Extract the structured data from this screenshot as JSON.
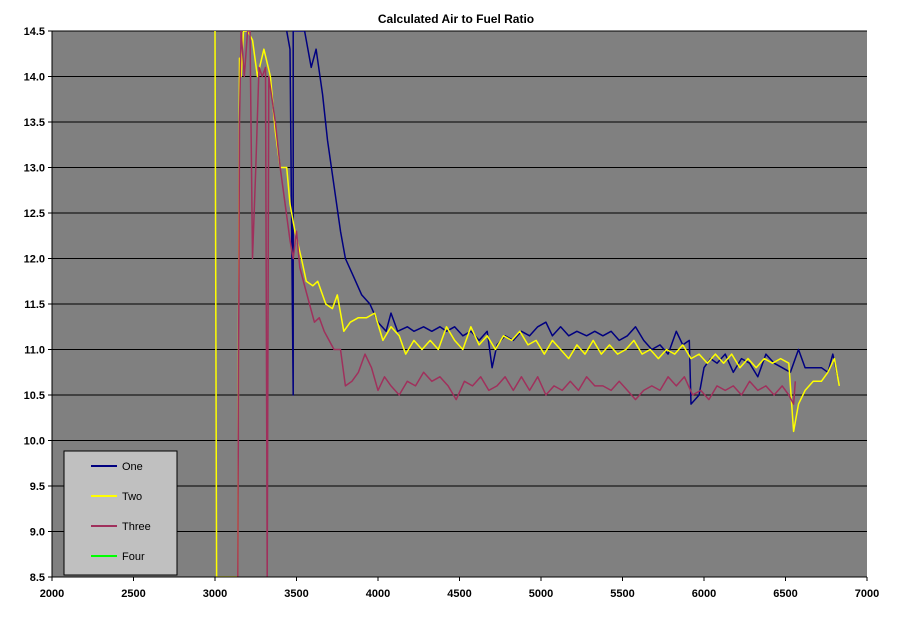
{
  "chart_data": {
    "type": "line",
    "title": "Calculated Air to Fuel Ratio",
    "xlabel": "",
    "ylabel": "",
    "xlim": [
      2000,
      7000
    ],
    "ylim": [
      8.5,
      14.5
    ],
    "x_ticks": [
      2000,
      2500,
      3000,
      3500,
      4000,
      4500,
      5000,
      5500,
      6000,
      6500,
      7000
    ],
    "y_ticks": [
      8.5,
      9.0,
      9.5,
      10.0,
      10.5,
      11.0,
      11.5,
      12.0,
      12.5,
      13.0,
      13.5,
      14.0,
      14.5
    ],
    "y_tick_labels": [
      "8.5",
      "9.0",
      "9.5",
      "10.0",
      "10.5",
      "11.0",
      "11.5",
      "12.0",
      "12.5",
      "13.0",
      "13.5",
      "14.0",
      "14.5"
    ],
    "grid": "horizontal",
    "plot_background": "#808080",
    "legend_position": "bottom-left",
    "series": [
      {
        "name": "One",
        "color": "#000080",
        "points": [
          [
            3440,
            14.5
          ],
          [
            3460,
            14.3
          ],
          [
            3480,
            10.5
          ],
          [
            3480,
            14.5
          ],
          [
            3550,
            14.5
          ],
          [
            3590,
            14.1
          ],
          [
            3620,
            14.3
          ],
          [
            3660,
            13.8
          ],
          [
            3690,
            13.3
          ],
          [
            3730,
            12.8
          ],
          [
            3770,
            12.3
          ],
          [
            3800,
            12.0
          ],
          [
            3850,
            11.8
          ],
          [
            3900,
            11.6
          ],
          [
            3950,
            11.5
          ],
          [
            4000,
            11.3
          ],
          [
            4050,
            11.2
          ],
          [
            4080,
            11.4
          ],
          [
            4120,
            11.2
          ],
          [
            4180,
            11.25
          ],
          [
            4220,
            11.2
          ],
          [
            4280,
            11.25
          ],
          [
            4330,
            11.2
          ],
          [
            4380,
            11.25
          ],
          [
            4420,
            11.2
          ],
          [
            4470,
            11.25
          ],
          [
            4520,
            11.15
          ],
          [
            4570,
            11.2
          ],
          [
            4620,
            11.1
          ],
          [
            4670,
            11.2
          ],
          [
            4700,
            10.8
          ],
          [
            4730,
            11.05
          ],
          [
            4780,
            11.15
          ],
          [
            4830,
            11.1
          ],
          [
            4880,
            11.2
          ],
          [
            4930,
            11.15
          ],
          [
            4980,
            11.25
          ],
          [
            5030,
            11.3
          ],
          [
            5070,
            11.15
          ],
          [
            5120,
            11.25
          ],
          [
            5170,
            11.15
          ],
          [
            5220,
            11.2
          ],
          [
            5280,
            11.15
          ],
          [
            5330,
            11.2
          ],
          [
            5380,
            11.15
          ],
          [
            5430,
            11.2
          ],
          [
            5480,
            11.1
          ],
          [
            5530,
            11.15
          ],
          [
            5580,
            11.25
          ],
          [
            5630,
            11.1
          ],
          [
            5680,
            11.0
          ],
          [
            5730,
            11.05
          ],
          [
            5780,
            10.95
          ],
          [
            5830,
            11.2
          ],
          [
            5870,
            11.05
          ],
          [
            5910,
            11.1
          ],
          [
            5920,
            10.4
          ],
          [
            5970,
            10.5
          ],
          [
            6000,
            10.8
          ],
          [
            6040,
            10.9
          ],
          [
            6080,
            10.85
          ],
          [
            6130,
            10.95
          ],
          [
            6180,
            10.75
          ],
          [
            6230,
            10.9
          ],
          [
            6280,
            10.85
          ],
          [
            6330,
            10.7
          ],
          [
            6380,
            10.95
          ],
          [
            6430,
            10.85
          ],
          [
            6480,
            10.8
          ],
          [
            6530,
            10.75
          ],
          [
            6580,
            11.0
          ],
          [
            6620,
            10.8
          ],
          [
            6670,
            10.8
          ],
          [
            6720,
            10.8
          ],
          [
            6760,
            10.75
          ],
          [
            6790,
            10.95
          ],
          [
            6820,
            10.7
          ]
        ]
      },
      {
        "name": "Two",
        "color": "#ffff00",
        "points": [
          [
            3000,
            14.5
          ],
          [
            3010,
            8.5
          ],
          [
            3140,
            8.5
          ],
          [
            3150,
            14.2
          ],
          [
            3160,
            14.0
          ],
          [
            3175,
            14.5
          ],
          [
            3200,
            14.5
          ],
          [
            3230,
            14.4
          ],
          [
            3260,
            14.0
          ],
          [
            3300,
            14.3
          ],
          [
            3340,
            14.0
          ],
          [
            3370,
            13.4
          ],
          [
            3400,
            13.0
          ],
          [
            3440,
            13.0
          ],
          [
            3460,
            12.6
          ],
          [
            3490,
            12.3
          ],
          [
            3530,
            12.0
          ],
          [
            3560,
            11.75
          ],
          [
            3600,
            11.7
          ],
          [
            3630,
            11.75
          ],
          [
            3680,
            11.5
          ],
          [
            3720,
            11.45
          ],
          [
            3750,
            11.6
          ],
          [
            3790,
            11.2
          ],
          [
            3830,
            11.3
          ],
          [
            3880,
            11.35
          ],
          [
            3930,
            11.35
          ],
          [
            3980,
            11.4
          ],
          [
            4030,
            11.1
          ],
          [
            4080,
            11.25
          ],
          [
            4130,
            11.15
          ],
          [
            4170,
            10.95
          ],
          [
            4220,
            11.1
          ],
          [
            4270,
            11.0
          ],
          [
            4320,
            11.1
          ],
          [
            4370,
            11.0
          ],
          [
            4420,
            11.25
          ],
          [
            4470,
            11.1
          ],
          [
            4520,
            11.0
          ],
          [
            4570,
            11.25
          ],
          [
            4620,
            11.05
          ],
          [
            4670,
            11.15
          ],
          [
            4720,
            11.0
          ],
          [
            4770,
            11.15
          ],
          [
            4820,
            11.1
          ],
          [
            4870,
            11.2
          ],
          [
            4920,
            11.05
          ],
          [
            4970,
            11.1
          ],
          [
            5020,
            10.95
          ],
          [
            5070,
            11.1
          ],
          [
            5120,
            11.0
          ],
          [
            5170,
            10.9
          ],
          [
            5220,
            11.05
          ],
          [
            5270,
            10.95
          ],
          [
            5320,
            11.1
          ],
          [
            5370,
            10.95
          ],
          [
            5420,
            11.05
          ],
          [
            5470,
            10.95
          ],
          [
            5520,
            11.0
          ],
          [
            5570,
            11.1
          ],
          [
            5620,
            10.95
          ],
          [
            5670,
            11.0
          ],
          [
            5720,
            10.9
          ],
          [
            5770,
            11.0
          ],
          [
            5820,
            10.95
          ],
          [
            5870,
            11.05
          ],
          [
            5920,
            10.9
          ],
          [
            5970,
            10.95
          ],
          [
            6020,
            10.85
          ],
          [
            6070,
            10.95
          ],
          [
            6120,
            10.85
          ],
          [
            6170,
            10.95
          ],
          [
            6220,
            10.8
          ],
          [
            6270,
            10.9
          ],
          [
            6320,
            10.8
          ],
          [
            6370,
            10.9
          ],
          [
            6420,
            10.85
          ],
          [
            6470,
            10.9
          ],
          [
            6520,
            10.85
          ],
          [
            6550,
            10.1
          ],
          [
            6580,
            10.4
          ],
          [
            6620,
            10.55
          ],
          [
            6670,
            10.65
          ],
          [
            6720,
            10.65
          ],
          [
            6760,
            10.75
          ],
          [
            6800,
            10.9
          ],
          [
            6830,
            10.6
          ]
        ]
      },
      {
        "name": "Three",
        "color": "#a0305c",
        "points": [
          [
            3140,
            8.5
          ],
          [
            3150,
            13.5
          ],
          [
            3160,
            14.5
          ],
          [
            3180,
            14.0
          ],
          [
            3200,
            14.5
          ],
          [
            3215,
            14.5
          ],
          [
            3230,
            12.0
          ],
          [
            3250,
            13.0
          ],
          [
            3270,
            14.1
          ],
          [
            3290,
            14.0
          ],
          [
            3310,
            14.1
          ],
          [
            3320,
            8.5
          ],
          [
            3330,
            14.0
          ],
          [
            3370,
            13.5
          ],
          [
            3400,
            13.0
          ],
          [
            3430,
            12.6
          ],
          [
            3460,
            12.2
          ],
          [
            3480,
            12.0
          ],
          [
            3500,
            12.3
          ],
          [
            3520,
            11.9
          ],
          [
            3550,
            11.7
          ],
          [
            3580,
            11.5
          ],
          [
            3610,
            11.3
          ],
          [
            3640,
            11.35
          ],
          [
            3670,
            11.2
          ],
          [
            3700,
            11.1
          ],
          [
            3730,
            11.0
          ],
          [
            3770,
            11.0
          ],
          [
            3800,
            10.6
          ],
          [
            3840,
            10.65
          ],
          [
            3880,
            10.75
          ],
          [
            3920,
            10.95
          ],
          [
            3960,
            10.8
          ],
          [
            4000,
            10.55
          ],
          [
            4040,
            10.7
          ],
          [
            4080,
            10.6
          ],
          [
            4130,
            10.5
          ],
          [
            4180,
            10.65
          ],
          [
            4230,
            10.6
          ],
          [
            4280,
            10.75
          ],
          [
            4330,
            10.65
          ],
          [
            4380,
            10.7
          ],
          [
            4430,
            10.6
          ],
          [
            4480,
            10.45
          ],
          [
            4530,
            10.65
          ],
          [
            4580,
            10.6
          ],
          [
            4630,
            10.7
          ],
          [
            4680,
            10.55
          ],
          [
            4730,
            10.6
          ],
          [
            4780,
            10.7
          ],
          [
            4830,
            10.55
          ],
          [
            4880,
            10.7
          ],
          [
            4930,
            10.55
          ],
          [
            4980,
            10.7
          ],
          [
            5030,
            10.5
          ],
          [
            5080,
            10.6
          ],
          [
            5130,
            10.55
          ],
          [
            5180,
            10.65
          ],
          [
            5230,
            10.55
          ],
          [
            5280,
            10.7
          ],
          [
            5330,
            10.6
          ],
          [
            5380,
            10.6
          ],
          [
            5430,
            10.55
          ],
          [
            5480,
            10.65
          ],
          [
            5530,
            10.55
          ],
          [
            5580,
            10.45
          ],
          [
            5630,
            10.55
          ],
          [
            5680,
            10.6
          ],
          [
            5730,
            10.55
          ],
          [
            5780,
            10.7
          ],
          [
            5830,
            10.6
          ],
          [
            5880,
            10.7
          ],
          [
            5930,
            10.5
          ],
          [
            5980,
            10.55
          ],
          [
            6030,
            10.45
          ],
          [
            6080,
            10.6
          ],
          [
            6130,
            10.55
          ],
          [
            6180,
            10.6
          ],
          [
            6230,
            10.5
          ],
          [
            6280,
            10.65
          ],
          [
            6330,
            10.55
          ],
          [
            6380,
            10.6
          ],
          [
            6430,
            10.5
          ],
          [
            6480,
            10.6
          ],
          [
            6520,
            10.5
          ],
          [
            6550,
            10.4
          ],
          [
            6560,
            10.65
          ]
        ]
      },
      {
        "name": "Four",
        "color": "#00ff00",
        "points": []
      }
    ]
  }
}
